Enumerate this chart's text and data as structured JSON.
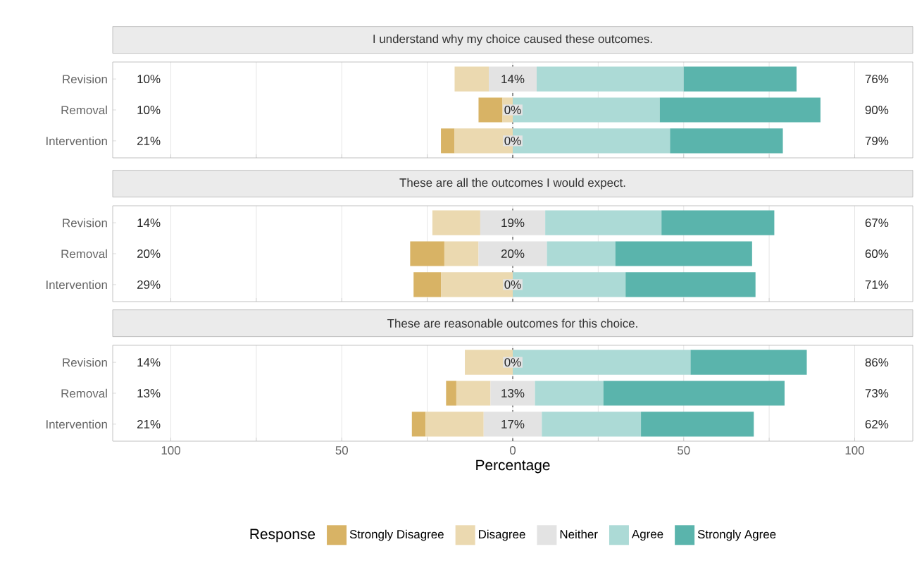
{
  "chart_data": [
    {
      "type": "bar",
      "orientation": "horizontal",
      "title": "I understand why my choice caused these outcomes.",
      "categories": [
        "Revision",
        "Removal",
        "Intervention"
      ],
      "series": [
        {
          "color": "#d8b365",
          "values": [
            null,
            7,
            4
          ],
          "base": [
            null,
            -10,
            -21
          ]
        },
        {
          "color": "#ebd9b0",
          "values": [
            10,
            3,
            17
          ],
          "base": [
            -17,
            -3,
            -17
          ]
        },
        {
          "color": "#e3e3e3",
          "values": [
            14,
            0,
            0
          ],
          "base": [
            -7,
            null,
            null
          ],
          "value_labels": [
            "14%",
            "0%",
            "0%"
          ]
        },
        {
          "color": "#acdad6",
          "values": [
            43,
            43,
            46
          ],
          "base": [
            7,
            0,
            0
          ]
        },
        {
          "color": "#5ab4ac",
          "values": [
            33,
            47,
            33
          ],
          "base": [
            50,
            43,
            46
          ]
        }
      ],
      "annotations": [
        "10%",
        "10%",
        "21%",
        "76%",
        "90%",
        "79%"
      ],
      "xlim": [
        -117,
        117
      ],
      "xticks": [
        {
          "value": -100,
          "label": null
        },
        {
          "value": -75,
          "label": null
        },
        {
          "value": -50,
          "label": null
        },
        {
          "value": -25,
          "label": null
        },
        {
          "value": 0,
          "label": null
        },
        {
          "value": 25,
          "label": null
        },
        {
          "value": 50,
          "label": null
        },
        {
          "value": 75,
          "label": null
        },
        {
          "value": 100,
          "label": null
        }
      ],
      "ref_lines": [
        {
          "axis": "x",
          "value": 0,
          "color": "#000000",
          "line_style": "dashed"
        }
      ],
      "grid": "x",
      "tick_labels": "y"
    },
    {
      "type": "bar",
      "orientation": "horizontal",
      "title": "These are all the outcomes I would expect.",
      "categories": [
        "Revision",
        "Removal",
        "Intervention"
      ],
      "series": [
        {
          "color": "#d8b365",
          "values": [
            null,
            10,
            8
          ],
          "base": [
            null,
            -30,
            -29
          ]
        },
        {
          "color": "#ebd9b0",
          "values": [
            14,
            10,
            21
          ],
          "base": [
            -23.5,
            -20,
            -21
          ]
        },
        {
          "color": "#e3e3e3",
          "values": [
            19,
            20,
            0
          ],
          "base": [
            -9.5,
            -10,
            null
          ],
          "value_labels": [
            "19%",
            "20%",
            "0%"
          ]
        },
        {
          "color": "#acdad6",
          "values": [
            34,
            20,
            33
          ],
          "base": [
            9.5,
            10,
            0
          ]
        },
        {
          "color": "#5ab4ac",
          "values": [
            33,
            40,
            38
          ],
          "base": [
            43.5,
            30,
            33
          ]
        }
      ],
      "annotations": [
        "14%",
        "20%",
        "29%",
        "67%",
        "60%",
        "71%"
      ],
      "xlim": [
        -117,
        117
      ],
      "xticks": [
        {
          "value": -100,
          "label": null
        },
        {
          "value": -75,
          "label": null
        },
        {
          "value": -50,
          "label": null
        },
        {
          "value": -25,
          "label": null
        },
        {
          "value": 0,
          "label": null
        },
        {
          "value": 25,
          "label": null
        },
        {
          "value": 50,
          "label": null
        },
        {
          "value": 75,
          "label": null
        },
        {
          "value": 100,
          "label": null
        }
      ],
      "ref_lines": [
        {
          "axis": "x",
          "value": 0,
          "color": "#000000",
          "line_style": "dashed"
        }
      ],
      "grid": "x",
      "tick_labels": "y"
    },
    {
      "type": "bar",
      "orientation": "horizontal",
      "title": "These are reasonable outcomes for this choice.",
      "categories": [
        "Revision",
        "Removal",
        "Intervention"
      ],
      "xlabel": "Percentage",
      "legend_title": "Response",
      "legend": "bottom",
      "series": [
        {
          "name": "Strongly Disagree",
          "color": "#d8b365",
          "values": [
            null,
            3,
            4
          ],
          "base": [
            null,
            -19.5,
            -29.5
          ]
        },
        {
          "name": "Disagree",
          "color": "#ebd9b0",
          "values": [
            14,
            10,
            17
          ],
          "base": [
            -14,
            -16.5,
            -25.5
          ]
        },
        {
          "name": "Neither",
          "color": "#e3e3e3",
          "values": [
            0,
            13,
            17
          ],
          "base": [
            null,
            -6.5,
            -8.5
          ],
          "value_labels": [
            "0%",
            "13%",
            "17%"
          ]
        },
        {
          "name": "Agree",
          "color": "#acdad6",
          "values": [
            52,
            20,
            29
          ],
          "base": [
            0,
            6.5,
            8.5
          ]
        },
        {
          "name": "Strongly Agree",
          "color": "#5ab4ac",
          "values": [
            34,
            53,
            33
          ],
          "base": [
            52,
            26.5,
            37.5
          ]
        }
      ],
      "annotations": [
        "14%",
        "13%",
        "21%",
        "86%",
        "73%",
        "62%"
      ],
      "xlim": [
        -117,
        117
      ],
      "xticks": [
        {
          "value": -100,
          "label": "100"
        },
        {
          "value": -75,
          "label": null
        },
        {
          "value": -50,
          "label": "50"
        },
        {
          "value": -25,
          "label": null
        },
        0,
        {
          "value": 25,
          "label": null
        },
        50,
        {
          "value": 75,
          "label": null
        },
        100
      ],
      "ref_lines": [
        {
          "axis": "x",
          "value": 0,
          "color": "#000000",
          "line_style": "dashed"
        }
      ],
      "grid": "x"
    }
  ]
}
